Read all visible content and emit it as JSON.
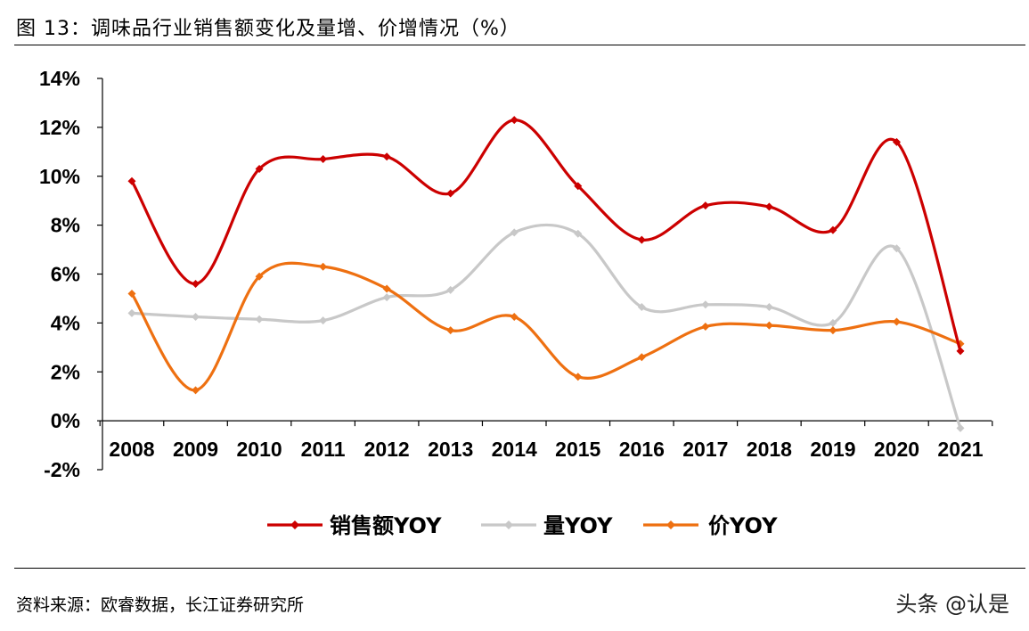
{
  "figure_title": "图 13：调味品行业销售额变化及量增、价增情况（%）",
  "source": "资料来源：欧睿数据，长江证券研究所",
  "watermark": "头条 @认是",
  "colors": {
    "sales": "#cc0000",
    "volume": "#c8c8c8",
    "price": "#ee7011"
  },
  "chart_data": {
    "type": "line",
    "title": "调味品行业销售额变化及量增、价增情况（%）",
    "categories": [
      "2008",
      "2009",
      "2010",
      "2011",
      "2012",
      "2013",
      "2014",
      "2015",
      "2016",
      "2017",
      "2018",
      "2019",
      "2020",
      "2021"
    ],
    "ylim": [
      -2,
      14
    ],
    "yticks": [
      -2,
      0,
      2,
      4,
      6,
      8,
      10,
      12,
      14
    ],
    "ytick_labels": [
      "-2%",
      "0%",
      "2%",
      "4%",
      "6%",
      "8%",
      "10%",
      "12%",
      "14%"
    ],
    "xlabel": "",
    "ylabel": "",
    "legend_position": "bottom",
    "series": [
      {
        "name": "销售额YOY",
        "color_key": "sales",
        "values": [
          9.8,
          5.6,
          10.3,
          10.7,
          10.8,
          9.3,
          12.3,
          9.6,
          7.4,
          8.8,
          8.75,
          7.8,
          11.4,
          2.85
        ]
      },
      {
        "name": "量YOY",
        "color_key": "volume",
        "values": [
          4.4,
          4.25,
          4.15,
          4.1,
          5.05,
          5.35,
          7.7,
          7.65,
          4.65,
          4.75,
          4.65,
          4.0,
          7.05,
          -0.3
        ]
      },
      {
        "name": "价YOY",
        "color_key": "price",
        "values": [
          5.2,
          1.25,
          5.9,
          6.3,
          5.4,
          3.7,
          4.25,
          1.8,
          2.6,
          3.85,
          3.9,
          3.7,
          4.05,
          3.15
        ]
      }
    ]
  }
}
